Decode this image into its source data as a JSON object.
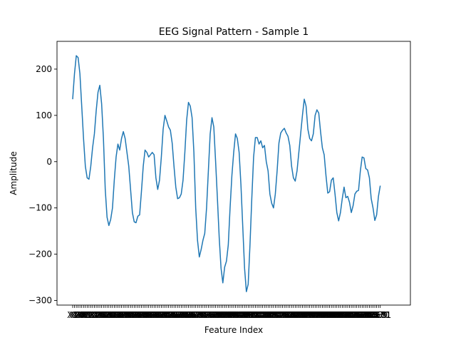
{
  "chart_data": {
    "type": "line",
    "title": "EEG Signal Pattern - Sample 1",
    "xlabel": "Feature Index",
    "ylabel": "Amplitude",
    "xlim": [
      0,
      178
    ],
    "ylim": [
      -310,
      260
    ],
    "yticks": [
      -300,
      -200,
      -100,
      0,
      100,
      200
    ],
    "x_tick_labels_first": "X1",
    "x_tick_labels_last": "X178",
    "grid": false,
    "legend": "none",
    "line_color": "#1f77b4",
    "series": [
      {
        "values": [
          135,
          190,
          229,
          225,
          190,
          120,
          50,
          -10,
          -35,
          -38,
          -10,
          30,
          60,
          110,
          150,
          165,
          125,
          50,
          -60,
          -120,
          -138,
          -125,
          -100,
          -40,
          10,
          38,
          25,
          50,
          65,
          50,
          20,
          -10,
          -60,
          -110,
          -130,
          -132,
          -118,
          -115,
          -65,
          -10,
          25,
          20,
          10,
          15,
          20,
          15,
          -35,
          -60,
          -40,
          10,
          70,
          100,
          88,
          75,
          68,
          40,
          -10,
          -55,
          -80,
          -78,
          -70,
          -40,
          20,
          90,
          128,
          120,
          95,
          20,
          -100,
          -170,
          -206,
          -190,
          -170,
          -155,
          -100,
          -20,
          60,
          95,
          75,
          0,
          -80,
          -165,
          -230,
          -262,
          -228,
          -215,
          -180,
          -100,
          -30,
          20,
          60,
          50,
          20,
          -50,
          -140,
          -230,
          -281,
          -265,
          -180,
          -80,
          10,
          52,
          52,
          38,
          45,
          30,
          35,
          0,
          -20,
          -70,
          -90,
          -100,
          -70,
          -20,
          40,
          62,
          68,
          72,
          62,
          55,
          35,
          -10,
          -35,
          -42,
          -20,
          20,
          60,
          100,
          135,
          120,
          70,
          50,
          45,
          60,
          100,
          112,
          105,
          65,
          30,
          15,
          -30,
          -68,
          -65,
          -40,
          -35,
          -70,
          -110,
          -128,
          -110,
          -80,
          -55,
          -78,
          -75,
          -88,
          -110,
          -95,
          -70,
          -64,
          -62,
          -20,
          10,
          8,
          -15,
          -18,
          -35,
          -80,
          -100,
          -127,
          -115,
          -75,
          -52
        ]
      }
    ]
  }
}
